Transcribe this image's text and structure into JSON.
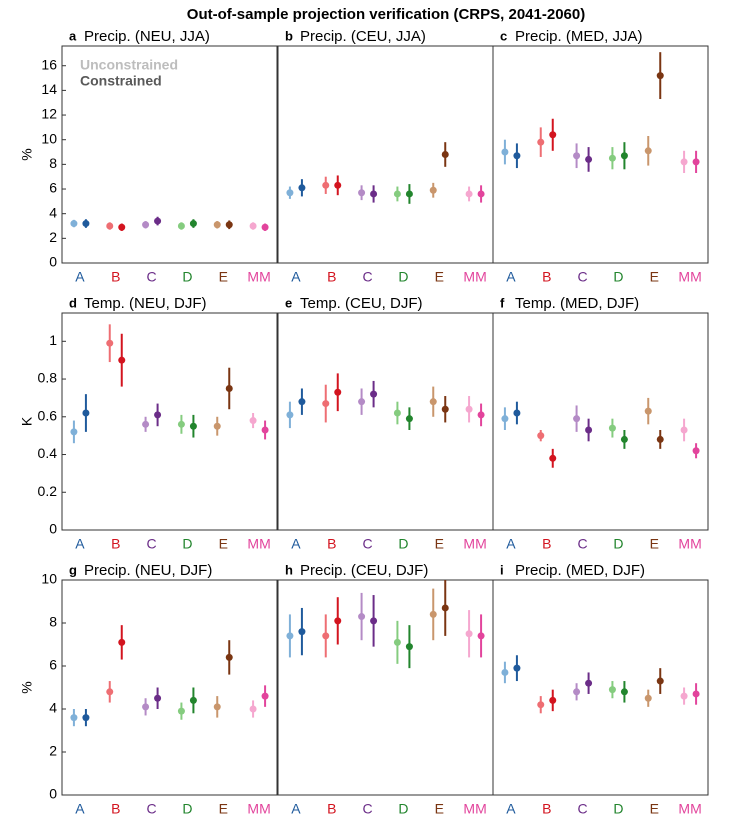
{
  "title": "Out-of-sample projection verification (CRPS, 2041-2060)",
  "legend": [
    "Unconstrained",
    "Constrained"
  ],
  "legend_colors": [
    "#bdbdbd",
    "#595959"
  ],
  "colors_unconstrained": [
    "#7fb0d8",
    "#ee6e73",
    "#b48bc6",
    "#85cc7f",
    "#c9966c",
    "#f5a7cf"
  ],
  "colors_constrained": [
    "#1f5a9c",
    "#d3141f",
    "#6b2d88",
    "#22852d",
    "#7a3512",
    "#e2449c"
  ],
  "chart_data": [
    {
      "type": "errorbar",
      "panel_label": "a",
      "title": "Precip. (NEU, JJA)",
      "ylabel": "%",
      "categories": [
        "A",
        "B",
        "C",
        "D",
        "E",
        "MM"
      ],
      "ylim": [
        0,
        17.6
      ],
      "yticks": [
        0,
        2,
        4,
        6,
        8,
        10,
        12,
        14,
        16
      ],
      "series": [
        {
          "values": [
            3.2,
            3.0,
            3.1,
            3.0,
            3.1,
            3.0
          ],
          "errors": [
            0.3,
            0.3,
            0.3,
            0.3,
            0.3,
            0.3
          ]
        },
        {
          "values": [
            3.2,
            2.9,
            3.4,
            3.2,
            3.1,
            2.9
          ],
          "errors": [
            0.35,
            0.3,
            0.35,
            0.35,
            0.35,
            0.3
          ]
        }
      ]
    },
    {
      "type": "errorbar",
      "panel_label": "b",
      "title": "Precip. (CEU, JJA)",
      "categories": [
        "A",
        "B",
        "C",
        "D",
        "E",
        "MM"
      ],
      "ylim": [
        0,
        17.6
      ],
      "series": [
        {
          "values": [
            5.7,
            6.3,
            5.7,
            5.6,
            5.9,
            5.6
          ],
          "errors": [
            0.5,
            0.7,
            0.6,
            0.6,
            0.6,
            0.6
          ]
        },
        {
          "values": [
            6.1,
            6.3,
            5.6,
            5.6,
            8.8,
            5.6
          ],
          "errors": [
            0.7,
            0.8,
            0.7,
            0.8,
            1.0,
            0.7
          ]
        }
      ]
    },
    {
      "type": "errorbar",
      "panel_label": "c",
      "title": "Precip. (MED, JJA)",
      "categories": [
        "A",
        "B",
        "C",
        "D",
        "E",
        "MM"
      ],
      "ylim": [
        0,
        17.6
      ],
      "series": [
        {
          "values": [
            9.0,
            9.8,
            8.7,
            8.5,
            9.1,
            8.2
          ],
          "errors": [
            1.0,
            1.2,
            1.0,
            0.9,
            1.2,
            0.9
          ]
        },
        {
          "values": [
            8.7,
            10.4,
            8.4,
            8.7,
            15.2,
            8.2
          ],
          "errors": [
            1.0,
            1.3,
            1.0,
            1.1,
            1.9,
            0.9
          ]
        }
      ]
    },
    {
      "type": "errorbar",
      "panel_label": "d",
      "title": "Temp. (NEU, DJF)",
      "ylabel": "K",
      "categories": [
        "A",
        "B",
        "C",
        "D",
        "E",
        "MM"
      ],
      "ylim": [
        0,
        1.15
      ],
      "yticks": [
        0,
        0.2,
        0.4,
        0.6,
        0.8,
        1
      ],
      "series": [
        {
          "values": [
            0.52,
            0.99,
            0.56,
            0.56,
            0.55,
            0.58
          ],
          "errors": [
            0.06,
            0.1,
            0.04,
            0.05,
            0.05,
            0.04
          ]
        },
        {
          "values": [
            0.62,
            0.9,
            0.61,
            0.55,
            0.75,
            0.53
          ],
          "errors": [
            0.1,
            0.14,
            0.06,
            0.06,
            0.11,
            0.05
          ]
        }
      ]
    },
    {
      "type": "errorbar",
      "panel_label": "e",
      "title": "Temp. (CEU, DJF)",
      "categories": [
        "A",
        "B",
        "C",
        "D",
        "E",
        "MM"
      ],
      "ylim": [
        0,
        1.15
      ],
      "series": [
        {
          "values": [
            0.61,
            0.67,
            0.68,
            0.62,
            0.68,
            0.64
          ],
          "errors": [
            0.07,
            0.1,
            0.07,
            0.06,
            0.08,
            0.07
          ]
        },
        {
          "values": [
            0.68,
            0.73,
            0.72,
            0.59,
            0.64,
            0.61
          ],
          "errors": [
            0.07,
            0.1,
            0.07,
            0.06,
            0.07,
            0.06
          ]
        }
      ]
    },
    {
      "type": "errorbar",
      "panel_label": "f",
      "title": "Temp. (MED, DJF)",
      "categories": [
        "A",
        "B",
        "C",
        "D",
        "E",
        "MM"
      ],
      "ylim": [
        0,
        1.15
      ],
      "series": [
        {
          "values": [
            0.59,
            0.5,
            0.59,
            0.54,
            0.63,
            0.53
          ],
          "errors": [
            0.06,
            0.03,
            0.07,
            0.05,
            0.07,
            0.06
          ]
        },
        {
          "values": [
            0.62,
            0.38,
            0.53,
            0.48,
            0.48,
            0.42
          ],
          "errors": [
            0.06,
            0.05,
            0.06,
            0.05,
            0.05,
            0.04
          ]
        }
      ]
    },
    {
      "type": "errorbar",
      "panel_label": "g",
      "title": "Precip. (NEU, DJF)",
      "ylabel": "%",
      "categories": [
        "A",
        "B",
        "C",
        "D",
        "E",
        "MM"
      ],
      "ylim": [
        0,
        10
      ],
      "yticks": [
        0,
        2,
        4,
        6,
        8,
        10
      ],
      "series": [
        {
          "values": [
            3.6,
            4.8,
            4.1,
            3.9,
            4.1,
            4.0
          ],
          "errors": [
            0.4,
            0.5,
            0.4,
            0.4,
            0.5,
            0.4
          ]
        },
        {
          "values": [
            3.6,
            7.1,
            4.5,
            4.4,
            6.4,
            4.6
          ],
          "errors": [
            0.4,
            0.8,
            0.5,
            0.6,
            0.8,
            0.5
          ]
        }
      ]
    },
    {
      "type": "errorbar",
      "panel_label": "h",
      "title": "Precip. (CEU, DJF)",
      "categories": [
        "A",
        "B",
        "C",
        "D",
        "E",
        "MM"
      ],
      "ylim": [
        0,
        10
      ],
      "series": [
        {
          "values": [
            7.4,
            7.4,
            8.3,
            7.1,
            8.4,
            7.5
          ],
          "errors": [
            1.0,
            1.0,
            1.1,
            1.0,
            1.2,
            1.1
          ]
        },
        {
          "values": [
            7.6,
            8.1,
            8.1,
            6.9,
            8.7,
            7.4
          ],
          "errors": [
            1.1,
            1.1,
            1.2,
            1.0,
            1.3,
            1.0
          ]
        }
      ]
    },
    {
      "type": "errorbar",
      "panel_label": "i",
      "title": "Precip. (MED, DJF)",
      "categories": [
        "A",
        "B",
        "C",
        "D",
        "E",
        "MM"
      ],
      "ylim": [
        0,
        10
      ],
      "series": [
        {
          "values": [
            5.7,
            4.2,
            4.8,
            4.9,
            4.5,
            4.6
          ],
          "errors": [
            0.5,
            0.4,
            0.4,
            0.4,
            0.4,
            0.4
          ]
        },
        {
          "values": [
            5.9,
            4.4,
            5.2,
            4.8,
            5.3,
            4.7
          ],
          "errors": [
            0.6,
            0.5,
            0.5,
            0.5,
            0.6,
            0.5
          ]
        }
      ]
    }
  ]
}
